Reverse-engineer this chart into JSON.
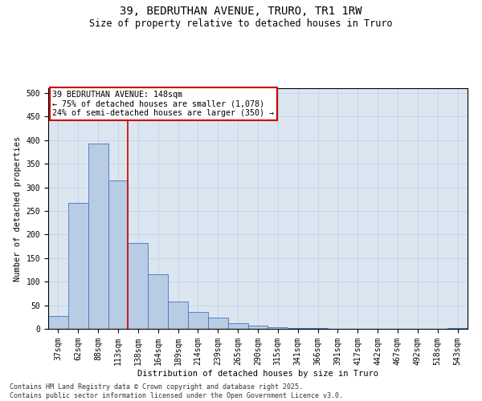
{
  "title_line1": "39, BEDRUTHAN AVENUE, TRURO, TR1 1RW",
  "title_line2": "Size of property relative to detached houses in Truro",
  "xlabel": "Distribution of detached houses by size in Truro",
  "ylabel": "Number of detached properties",
  "categories": [
    "37sqm",
    "62sqm",
    "88sqm",
    "113sqm",
    "138sqm",
    "164sqm",
    "189sqm",
    "214sqm",
    "239sqm",
    "265sqm",
    "290sqm",
    "315sqm",
    "341sqm",
    "366sqm",
    "391sqm",
    "417sqm",
    "442sqm",
    "467sqm",
    "492sqm",
    "518sqm",
    "543sqm"
  ],
  "values": [
    28,
    267,
    393,
    315,
    182,
    115,
    58,
    35,
    23,
    12,
    6,
    3,
    1,
    1,
    0,
    0,
    0,
    0,
    0,
    0,
    2
  ],
  "bar_color": "#b8cce4",
  "bar_edge_color": "#4472c4",
  "grid_color": "#c8d4e8",
  "bg_color": "#dce6f1",
  "vline_color": "#cc0000",
  "annotation_text": "39 BEDRUTHAN AVENUE: 148sqm\n← 75% of detached houses are smaller (1,078)\n24% of semi-detached houses are larger (350) →",
  "annotation_box_color": "#cc0000",
  "footer": "Contains HM Land Registry data © Crown copyright and database right 2025.\nContains public sector information licensed under the Open Government Licence v3.0.",
  "ylim": [
    0,
    510
  ],
  "yticks": [
    0,
    50,
    100,
    150,
    200,
    250,
    300,
    350,
    400,
    450,
    500
  ],
  "title_fontsize": 10,
  "subtitle_fontsize": 8.5,
  "ylabel_fontsize": 7.5,
  "xlabel_fontsize": 7.5,
  "tick_fontsize": 7,
  "footer_fontsize": 6,
  "ann_fontsize": 7.2,
  "vline_xindex": 3.5
}
